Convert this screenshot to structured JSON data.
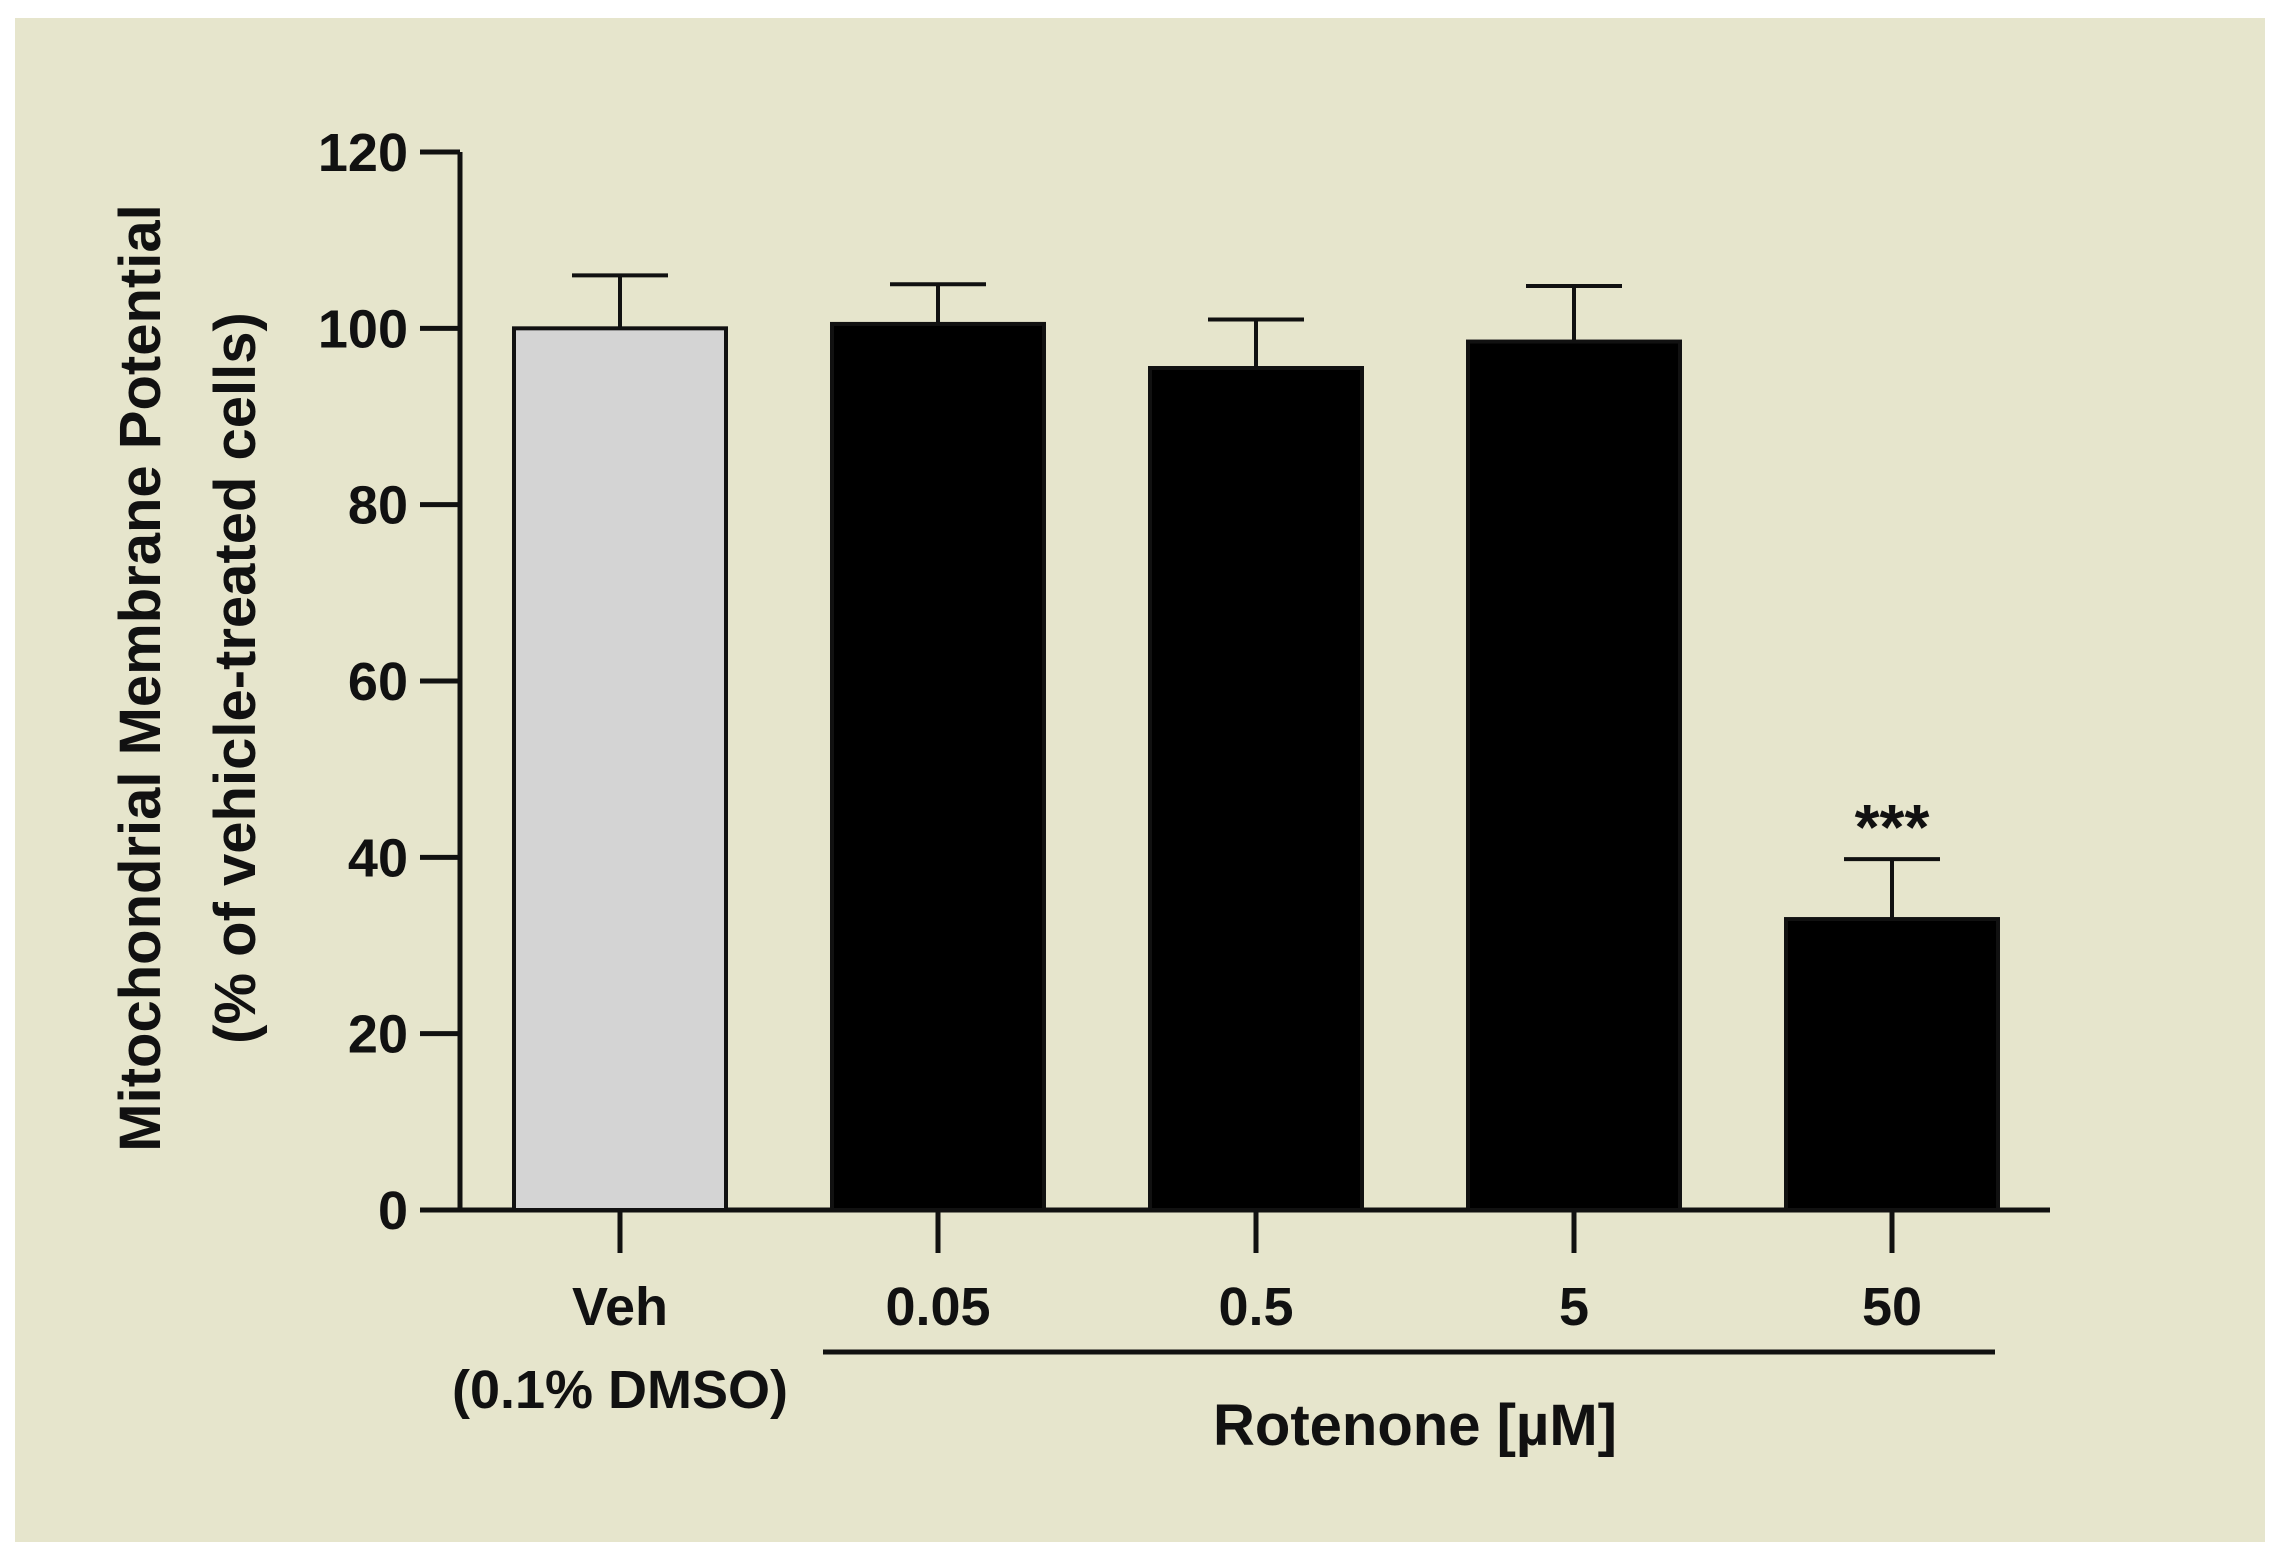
{
  "colors": {
    "background": "#e6e5cc",
    "page": "#ffffff",
    "axis": "#111111",
    "vehicle_bar": "#d4d4d4",
    "treatment_bar": "#000000"
  },
  "chart_data": {
    "type": "bar",
    "title": "",
    "ylabel_line1": "Mitochondrial Membrane Potential",
    "ylabel_line2": "(% of vehicle-treated cells)",
    "xlabel": "Rotenone [µM]",
    "ylim": [
      0,
      120
    ],
    "yticks": [
      0,
      20,
      40,
      60,
      80,
      100,
      120
    ],
    "categories": [
      {
        "label": "Veh",
        "sublabel": "(0.1% DMSO)",
        "value": 100,
        "error": 6,
        "group": "vehicle",
        "annotation": ""
      },
      {
        "label": "0.05",
        "sublabel": "",
        "value": 100.5,
        "error": 4.5,
        "group": "rotenone",
        "annotation": ""
      },
      {
        "label": "0.5",
        "sublabel": "",
        "value": 95.5,
        "error": 5.5,
        "group": "rotenone",
        "annotation": ""
      },
      {
        "label": "5",
        "sublabel": "",
        "value": 98.5,
        "error": 6.3,
        "group": "rotenone",
        "annotation": ""
      },
      {
        "label": "50",
        "sublabel": "",
        "value": 33,
        "error": 6.8,
        "group": "rotenone",
        "annotation": "***"
      }
    ],
    "grid": false,
    "legend": "none"
  }
}
